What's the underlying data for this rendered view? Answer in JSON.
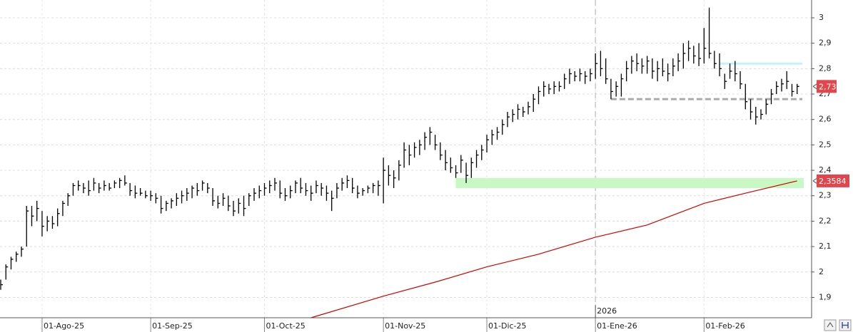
{
  "chart_data": {
    "type": "ohlc",
    "color": "#000000",
    "categories": [
      "2025-07-22",
      "2025-07-23",
      "2025-07-24",
      "2025-07-25",
      "2025-07-28",
      "2025-07-29",
      "2025-07-30",
      "2025-07-31",
      "2025-08-01",
      "2025-08-04",
      "2025-08-05",
      "2025-08-06",
      "2025-08-07",
      "2025-08-08",
      "2025-08-11",
      "2025-08-12",
      "2025-08-13",
      "2025-08-14",
      "2025-08-15",
      "2025-08-18",
      "2025-08-19",
      "2025-08-20",
      "2025-08-21",
      "2025-08-22",
      "2025-08-25",
      "2025-08-26",
      "2025-08-27",
      "2025-08-28",
      "2025-08-29",
      "2025-09-01",
      "2025-09-02",
      "2025-09-03",
      "2025-09-04",
      "2025-09-05",
      "2025-09-08",
      "2025-09-09",
      "2025-09-10",
      "2025-09-11",
      "2025-09-12",
      "2025-09-15",
      "2025-09-16",
      "2025-09-17",
      "2025-09-18",
      "2025-09-19",
      "2025-09-22",
      "2025-09-23",
      "2025-09-24",
      "2025-09-25",
      "2025-09-26",
      "2025-09-29",
      "2025-09-30",
      "2025-10-01",
      "2025-10-02",
      "2025-10-03",
      "2025-10-06",
      "2025-10-07",
      "2025-10-08",
      "2025-10-09",
      "2025-10-10",
      "2025-10-13",
      "2025-10-14",
      "2025-10-15",
      "2025-10-16",
      "2025-10-17",
      "2025-10-20",
      "2025-10-21",
      "2025-10-22",
      "2025-10-23",
      "2025-10-24",
      "2025-10-27",
      "2025-10-28",
      "2025-10-29",
      "2025-10-30",
      "2025-10-31",
      "2025-11-03",
      "2025-11-04",
      "2025-11-05",
      "2025-11-06",
      "2025-11-07",
      "2025-11-10",
      "2025-11-11",
      "2025-11-12",
      "2025-11-13",
      "2025-11-14",
      "2025-11-17",
      "2025-11-18",
      "2025-11-19",
      "2025-11-20",
      "2025-11-21",
      "2025-11-24",
      "2025-11-25",
      "2025-11-26",
      "2025-11-27",
      "2025-11-28",
      "2025-12-01",
      "2025-12-02",
      "2025-12-03",
      "2025-12-04",
      "2025-12-05",
      "2025-12-08",
      "2025-12-09",
      "2025-12-10",
      "2025-12-11",
      "2025-12-12",
      "2025-12-15",
      "2025-12-16",
      "2025-12-17",
      "2025-12-18",
      "2025-12-19",
      "2025-12-22",
      "2025-12-23",
      "2025-12-24",
      "2025-12-29",
      "2025-12-30",
      "2025-12-31",
      "2026-01-02",
      "2026-01-05",
      "2026-01-06",
      "2026-01-07",
      "2026-01-08",
      "2026-01-09",
      "2026-01-12",
      "2026-01-13",
      "2026-01-14",
      "2026-01-15",
      "2026-01-16",
      "2026-01-19",
      "2026-01-20",
      "2026-01-21",
      "2026-01-22",
      "2026-01-23",
      "2026-01-26",
      "2026-01-27",
      "2026-01-28",
      "2026-01-29",
      "2026-01-30",
      "2026-02-02",
      "2026-02-03",
      "2026-02-04",
      "2026-02-05",
      "2026-02-06",
      "2026-02-09",
      "2026-02-10",
      "2026-02-11",
      "2026-02-12",
      "2026-02-13",
      "2026-02-16",
      "2026-02-17",
      "2026-02-18",
      "2026-02-19",
      "2026-02-20",
      "2026-02-23",
      "2026-02-24",
      "2026-02-25",
      "2026-02-26"
    ],
    "high": [
      1.97,
      2.03,
      2.06,
      2.08,
      2.1,
      2.26,
      2.26,
      2.28,
      2.24,
      2.22,
      2.22,
      2.25,
      2.28,
      2.31,
      2.35,
      2.36,
      2.35,
      2.36,
      2.37,
      2.35,
      2.36,
      2.35,
      2.36,
      2.37,
      2.38,
      2.35,
      2.34,
      2.33,
      2.32,
      2.32,
      2.31,
      2.3,
      2.28,
      2.29,
      2.31,
      2.32,
      2.33,
      2.34,
      2.35,
      2.36,
      2.35,
      2.33,
      2.3,
      2.31,
      2.3,
      2.28,
      2.29,
      2.3,
      2.31,
      2.33,
      2.34,
      2.35,
      2.36,
      2.37,
      2.36,
      2.33,
      2.34,
      2.36,
      2.37,
      2.35,
      2.34,
      2.36,
      2.35,
      2.34,
      2.32,
      2.35,
      2.37,
      2.38,
      2.37,
      2.34,
      2.33,
      2.34,
      2.35,
      2.36,
      2.45,
      2.42,
      2.4,
      2.44,
      2.51,
      2.5,
      2.51,
      2.52,
      2.55,
      2.57,
      2.54,
      2.51,
      2.48,
      2.45,
      2.42,
      2.46,
      2.43,
      2.45,
      2.48,
      2.5,
      2.54,
      2.56,
      2.57,
      2.6,
      2.63,
      2.64,
      2.66,
      2.65,
      2.67,
      2.7,
      2.73,
      2.75,
      2.74,
      2.75,
      2.75,
      2.78,
      2.8,
      2.79,
      2.8,
      2.79,
      2.8,
      2.86,
      2.87,
      2.84,
      2.76,
      2.75,
      2.78,
      2.83,
      2.85,
      2.86,
      2.84,
      2.85,
      2.84,
      2.83,
      2.84,
      2.82,
      2.84,
      2.86,
      2.9,
      2.91,
      2.89,
      2.9,
      2.96,
      3.04,
      2.87,
      2.86,
      2.78,
      2.82,
      2.83,
      2.79,
      2.74,
      2.68,
      2.65,
      2.64,
      2.68,
      2.72,
      2.75,
      2.76,
      2.79,
      2.74,
      2.74
    ],
    "low": [
      1.93,
      1.97,
      2.01,
      2.04,
      2.06,
      2.1,
      2.18,
      2.2,
      2.14,
      2.16,
      2.17,
      2.18,
      2.22,
      2.26,
      2.3,
      2.32,
      2.31,
      2.3,
      2.32,
      2.31,
      2.32,
      2.32,
      2.33,
      2.33,
      2.34,
      2.3,
      2.29,
      2.3,
      2.29,
      2.28,
      2.27,
      2.23,
      2.24,
      2.25,
      2.26,
      2.27,
      2.28,
      2.29,
      2.3,
      2.32,
      2.31,
      2.26,
      2.25,
      2.26,
      2.24,
      2.22,
      2.23,
      2.22,
      2.26,
      2.28,
      2.29,
      2.3,
      2.31,
      2.32,
      2.29,
      2.28,
      2.29,
      2.31,
      2.31,
      2.3,
      2.28,
      2.31,
      2.3,
      2.28,
      2.24,
      2.29,
      2.32,
      2.33,
      2.31,
      2.29,
      2.3,
      2.31,
      2.31,
      2.3,
      2.27,
      2.34,
      2.33,
      2.36,
      2.41,
      2.42,
      2.45,
      2.46,
      2.48,
      2.5,
      2.48,
      2.44,
      2.4,
      2.39,
      2.37,
      2.39,
      2.35,
      2.37,
      2.41,
      2.44,
      2.47,
      2.5,
      2.52,
      2.54,
      2.57,
      2.59,
      2.6,
      2.61,
      2.62,
      2.63,
      2.66,
      2.69,
      2.7,
      2.7,
      2.71,
      2.72,
      2.74,
      2.75,
      2.75,
      2.74,
      2.75,
      2.76,
      2.77,
      2.74,
      2.68,
      2.69,
      2.69,
      2.75,
      2.78,
      2.79,
      2.78,
      2.78,
      2.76,
      2.75,
      2.77,
      2.75,
      2.77,
      2.79,
      2.8,
      2.83,
      2.82,
      2.81,
      2.82,
      2.84,
      2.8,
      2.77,
      2.72,
      2.76,
      2.75,
      2.72,
      2.64,
      2.6,
      2.58,
      2.6,
      2.62,
      2.66,
      2.7,
      2.71,
      2.72,
      2.69,
      2.7
    ],
    "close": [
      1.95,
      2.02,
      2.05,
      2.07,
      2.09,
      2.24,
      2.22,
      2.25,
      2.18,
      2.2,
      2.19,
      2.23,
      2.27,
      2.3,
      2.34,
      2.34,
      2.33,
      2.32,
      2.35,
      2.33,
      2.34,
      2.33,
      2.35,
      2.36,
      2.35,
      2.32,
      2.31,
      2.31,
      2.3,
      2.3,
      2.29,
      2.25,
      2.27,
      2.28,
      2.29,
      2.3,
      2.31,
      2.33,
      2.32,
      2.35,
      2.33,
      2.28,
      2.27,
      2.29,
      2.26,
      2.24,
      2.27,
      2.25,
      2.3,
      2.31,
      2.32,
      2.33,
      2.34,
      2.35,
      2.31,
      2.3,
      2.32,
      2.35,
      2.33,
      2.32,
      2.31,
      2.34,
      2.33,
      2.31,
      2.29,
      2.33,
      2.35,
      2.36,
      2.33,
      2.31,
      2.32,
      2.33,
      2.34,
      2.34,
      2.4,
      2.38,
      2.37,
      2.42,
      2.48,
      2.46,
      2.49,
      2.5,
      2.53,
      2.55,
      2.5,
      2.46,
      2.43,
      2.41,
      2.39,
      2.44,
      2.38,
      2.43,
      2.46,
      2.48,
      2.52,
      2.54,
      2.55,
      2.58,
      2.61,
      2.62,
      2.64,
      2.63,
      2.65,
      2.68,
      2.71,
      2.73,
      2.72,
      2.73,
      2.73,
      2.76,
      2.78,
      2.77,
      2.78,
      2.77,
      2.78,
      2.82,
      2.8,
      2.76,
      2.71,
      2.73,
      2.76,
      2.8,
      2.83,
      2.82,
      2.81,
      2.83,
      2.79,
      2.8,
      2.79,
      2.78,
      2.81,
      2.83,
      2.86,
      2.88,
      2.85,
      2.84,
      2.88,
      2.86,
      2.82,
      2.8,
      2.75,
      2.79,
      2.78,
      2.74,
      2.67,
      2.63,
      2.61,
      2.62,
      2.66,
      2.7,
      2.73,
      2.74,
      2.75,
      2.71,
      2.73
    ],
    "last_label": "2,73",
    "tag_color": "#e0474c",
    "moving_average": {
      "color": "#d40000",
      "x": [
        "2025-10-14",
        "2025-11-03",
        "2025-11-17",
        "2025-12-01",
        "2025-12-15",
        "2026-01-02",
        "2026-01-16",
        "2026-02-02",
        "2026-02-13",
        "2026-02-26"
      ],
      "values": [
        1.82,
        1.905,
        1.96,
        2.02,
        2.07,
        2.137,
        2.185,
        2.27,
        2.315,
        2.3584
      ],
      "last_label": "2,3584"
    },
    "levels": [
      {
        "value": 2.82,
        "color": "#c4f1ff",
        "from": "2026-02-05",
        "style": "solid"
      },
      {
        "value": 2.68,
        "color": "#aaaaaa",
        "from": "2026-01-07",
        "style": "dashed"
      }
    ],
    "zones": [
      {
        "low": 2.33,
        "high": 2.37,
        "color": "#c8f8c4",
        "from": "2025-11-21"
      }
    ],
    "ylim": [
      1.82,
      3.07
    ],
    "yticks": [
      {
        "value": 1.9,
        "label": "1,9"
      },
      2,
      {
        "value": 2.1,
        "label": "2,1"
      },
      {
        "value": 2.2,
        "label": "2,2"
      },
      {
        "value": 2.3,
        "label": "2,3"
      },
      {
        "value": 2.4,
        "label": "2,4"
      },
      {
        "value": 2.5,
        "label": "2,5"
      },
      {
        "value": 2.6,
        "label": "2,6"
      },
      {
        "value": 2.7,
        "label": "2,7"
      },
      {
        "value": 2.8,
        "label": "2,8"
      },
      {
        "value": 2.9,
        "label": "2,9"
      },
      3
    ],
    "xticks": [
      {
        "value": "2025-08-01",
        "label": "01-Ago-25"
      },
      {
        "value": "2025-09-01",
        "label": "01-Sep-25"
      },
      {
        "value": "2025-10-01",
        "label": "01-Oct-25"
      },
      {
        "value": "2025-11-01",
        "label": "01-Nov-25"
      },
      {
        "value": "2025-12-01",
        "label": "01-Dic-25"
      },
      {
        "value": "2026-01-01",
        "label": "01-Ene-26"
      },
      {
        "value": "2026-02-01",
        "label": "01-Feb-26"
      }
    ],
    "year_marker": {
      "value": "2026-01-01",
      "label": "2026"
    },
    "grid": true
  }
}
